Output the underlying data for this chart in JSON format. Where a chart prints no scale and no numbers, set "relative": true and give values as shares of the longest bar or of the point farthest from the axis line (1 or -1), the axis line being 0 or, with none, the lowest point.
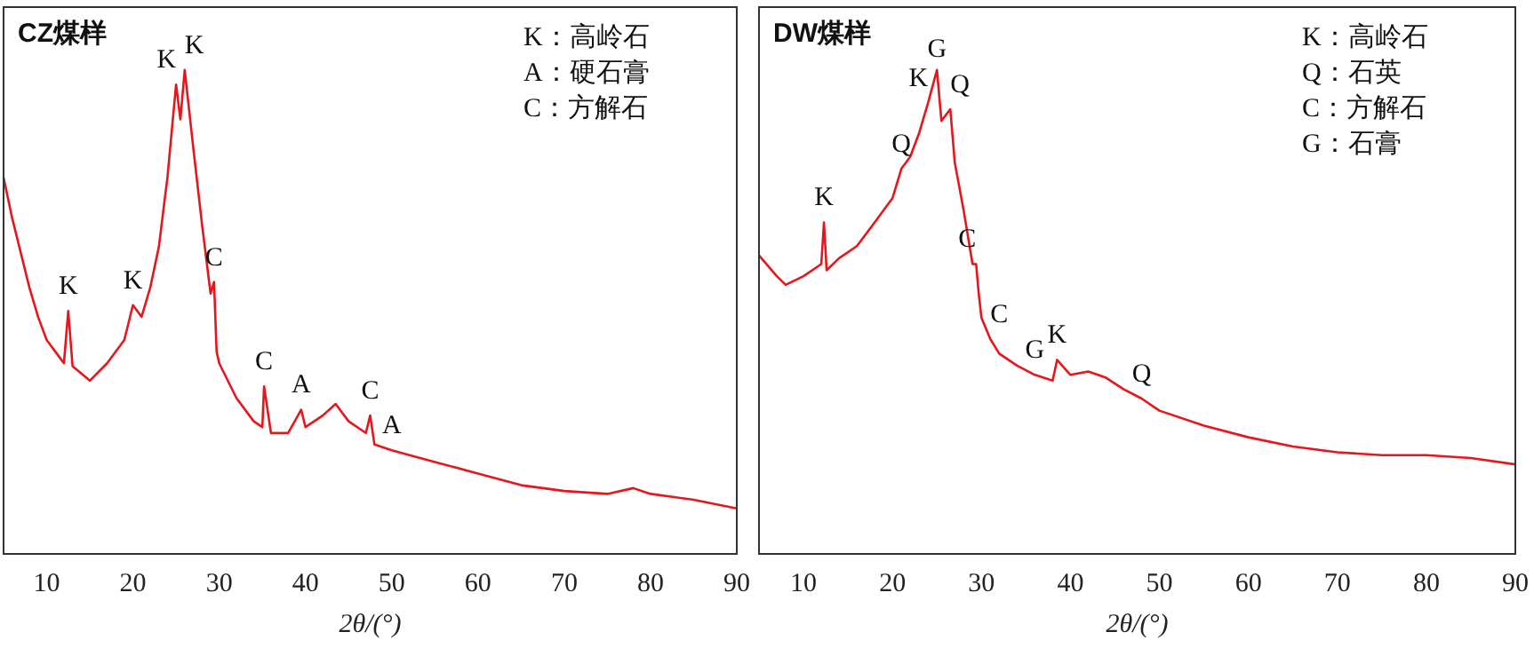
{
  "chart_data": [
    {
      "type": "line",
      "title": "CZ煤样",
      "xlabel": "2θ/(°)",
      "relative": true,
      "xlim": [
        5,
        90
      ],
      "xticks": [
        10,
        20,
        30,
        40,
        50,
        60,
        70,
        80,
        90
      ],
      "tick_labels": "x",
      "grid": false,
      "legend": false,
      "marker": "none",
      "line_style": "solid",
      "x": [
        5,
        6,
        7,
        8,
        9,
        10,
        11,
        12,
        12.5,
        13,
        15,
        17,
        19,
        20,
        21,
        22,
        23,
        24,
        25,
        25.5,
        26,
        27,
        28,
        29,
        29.4,
        29.7,
        30,
        32,
        34,
        35,
        35.2,
        36,
        38,
        39.5,
        40,
        42,
        43.5,
        45,
        47,
        47.5,
        48,
        50,
        55,
        60,
        65,
        70,
        75,
        78,
        80,
        85,
        90
      ],
      "series": [
        {
          "color": "#e8161b",
          "values": [
            0.778,
            0.694,
            0.622,
            0.55,
            0.49,
            0.442,
            0.418,
            0.394,
            0.502,
            0.388,
            0.358,
            0.394,
            0.442,
            0.514,
            0.49,
            0.55,
            0.634,
            0.778,
            0.97,
            0.898,
            1,
            0.838,
            0.682,
            0.538,
            0.562,
            0.418,
            0.394,
            0.322,
            0.274,
            0.262,
            0.346,
            0.25,
            0.25,
            0.298,
            0.262,
            0.286,
            0.31,
            0.274,
            0.25,
            0.286,
            0.226,
            0.214,
            0.19,
            0.166,
            0.142,
            0.13,
            0.124,
            0.136,
            0.124,
            0.112,
            0.094
          ]
        }
      ],
      "annotations": [
        {
          "text": "K",
          "x": 12.5,
          "y": 0.502
        },
        {
          "text": "K",
          "x": 20,
          "y": 0.514
        },
        {
          "text": "K",
          "x": 25,
          "y": 0.97
        },
        {
          "text": "K",
          "x": 26,
          "y": 1
        },
        {
          "text": "C",
          "x": 29.4,
          "y": 0.562
        },
        {
          "text": "C",
          "x": 35.2,
          "y": 0.346
        },
        {
          "text": "A",
          "x": 39.5,
          "y": 0.298
        },
        {
          "text": "C",
          "x": 47.5,
          "y": 0.286
        },
        {
          "text": "A",
          "x": 50,
          "y": 0.214
        },
        "K：高岭石",
        "A：硬石膏",
        "C：方解石"
      ]
    },
    {
      "type": "line",
      "title": "DW煤样",
      "xlabel": "2θ/(°)",
      "relative": true,
      "xlim": [
        5,
        90
      ],
      "xticks": [
        10,
        20,
        30,
        40,
        50,
        60,
        70,
        80,
        90
      ],
      "tick_labels": "x",
      "grid": false,
      "legend": false,
      "marker": "none",
      "line_style": "solid",
      "x": [
        5,
        7,
        8,
        10,
        12,
        12.3,
        12.6,
        14,
        16,
        18,
        20,
        21,
        22,
        23,
        24,
        25,
        25.5,
        26.5,
        27,
        28,
        29,
        29.4,
        29.7,
        30,
        31,
        32,
        34,
        36,
        38,
        38.5,
        40,
        42,
        44,
        46,
        48,
        50,
        55,
        60,
        65,
        70,
        75,
        80,
        85,
        90
      ],
      "series": [
        {
          "color": "#e8161b",
          "values": [
            0.617,
            0.574,
            0.556,
            0.574,
            0.599,
            0.685,
            0.586,
            0.611,
            0.636,
            0.685,
            0.735,
            0.796,
            0.821,
            0.87,
            0.932,
            1,
            0.895,
            0.919,
            0.809,
            0.71,
            0.599,
            0.599,
            0.537,
            0.488,
            0.444,
            0.414,
            0.389,
            0.37,
            0.358,
            0.401,
            0.37,
            0.377,
            0.364,
            0.34,
            0.321,
            0.296,
            0.265,
            0.241,
            0.222,
            0.21,
            0.204,
            0.204,
            0.198,
            0.185
          ]
        }
      ],
      "annotations": [
        {
          "text": "K",
          "x": 12.3,
          "y": 0.685
        },
        {
          "text": "Q",
          "x": 21,
          "y": 0.796
        },
        {
          "text": "K",
          "x": 24,
          "y": 0.932
        },
        {
          "text": "G",
          "x": 25,
          "y": 1
        },
        {
          "text": "Q",
          "x": 26.5,
          "y": 0.919
        },
        {
          "text": "C",
          "x": 29.4,
          "y": 0.599
        },
        {
          "text": "C",
          "x": 31,
          "y": 0.444
        },
        {
          "text": "G",
          "x": 36,
          "y": 0.37
        },
        {
          "text": "K",
          "x": 38.5,
          "y": 0.401
        },
        {
          "text": "Q",
          "x": 48,
          "y": 0.321
        },
        "K：高岭石",
        "Q：石英",
        "C：方解石",
        "G：石膏"
      ]
    }
  ]
}
